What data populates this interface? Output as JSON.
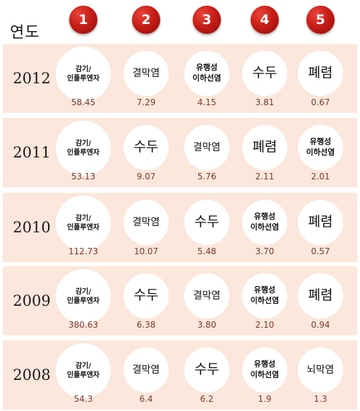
{
  "header": {
    "label": "연도"
  },
  "ranks": [
    "1",
    "2",
    "3",
    "4",
    "5"
  ],
  "rows": [
    {
      "year": "2012",
      "cells": [
        {
          "name": "감기/\n인플루엔자",
          "value": "58.45"
        },
        {
          "name": "결막염",
          "value": "7.29"
        },
        {
          "name": "유행성\n이하선염",
          "value": "4.15"
        },
        {
          "name": "수두",
          "value": "3.81"
        },
        {
          "name": "폐렴",
          "value": "0.67"
        }
      ]
    },
    {
      "year": "2011",
      "cells": [
        {
          "name": "감기/\n인플루엔자",
          "value": "53.13"
        },
        {
          "name": "수두",
          "value": "9.07"
        },
        {
          "name": "결막염",
          "value": "5.76"
        },
        {
          "name": "폐렴",
          "value": "2.11"
        },
        {
          "name": "유행성\n이하선염",
          "value": "2.01"
        }
      ]
    },
    {
      "year": "2010",
      "cells": [
        {
          "name": "감기/\n인플루엔자",
          "value": "112.73"
        },
        {
          "name": "결막염",
          "value": "10.07"
        },
        {
          "name": "수두",
          "value": "5.48"
        },
        {
          "name": "유행성\n이하선염",
          "value": "3.70"
        },
        {
          "name": "폐렴",
          "value": "0.57"
        }
      ]
    },
    {
      "year": "2009",
      "cells": [
        {
          "name": "감기/\n인플루엔자",
          "value": "380.63"
        },
        {
          "name": "수두",
          "value": "6.38"
        },
        {
          "name": "결막염",
          "value": "3.80"
        },
        {
          "name": "유행성\n이하선염",
          "value": "2.10"
        },
        {
          "name": "폐렴",
          "value": "0.94"
        }
      ]
    },
    {
      "year": "2008",
      "cells": [
        {
          "name": "감기/\n인플루엔자",
          "value": "54.3"
        },
        {
          "name": "결막염",
          "value": "6.4"
        },
        {
          "name": "수두",
          "value": "6.2"
        },
        {
          "name": "유행성\n이하선염",
          "value": "1.9"
        },
        {
          "name": "뇌막염",
          "value": "1.3"
        }
      ]
    }
  ],
  "colors": {
    "row_bg": "#fbe7dc",
    "badge": "#c81d17",
    "value_text": "#7a3a2a"
  }
}
